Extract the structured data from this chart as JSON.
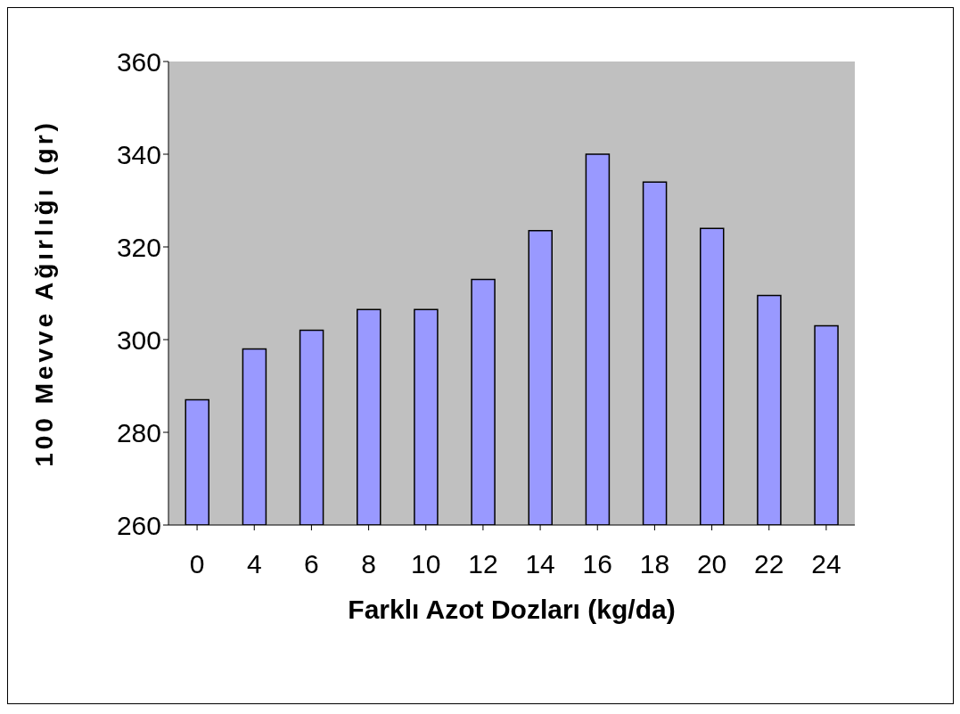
{
  "chart_data": {
    "type": "bar",
    "xlabel": "Farklı Azot Dozları (kg/da)",
    "ylabel": "100 Mevve Ağırlığı (gr)",
    "categories": [
      "0",
      "4",
      "6",
      "8",
      "10",
      "12",
      "14",
      "16",
      "18",
      "20",
      "22",
      "24"
    ],
    "values": [
      287,
      298,
      302,
      306.5,
      306.5,
      313,
      323.5,
      340,
      334,
      324,
      309.5,
      303
    ],
    "color": "#9999ff",
    "ylim": [
      260,
      360
    ],
    "yticks": [
      260,
      280,
      300,
      320,
      340,
      360
    ],
    "grid": false
  }
}
